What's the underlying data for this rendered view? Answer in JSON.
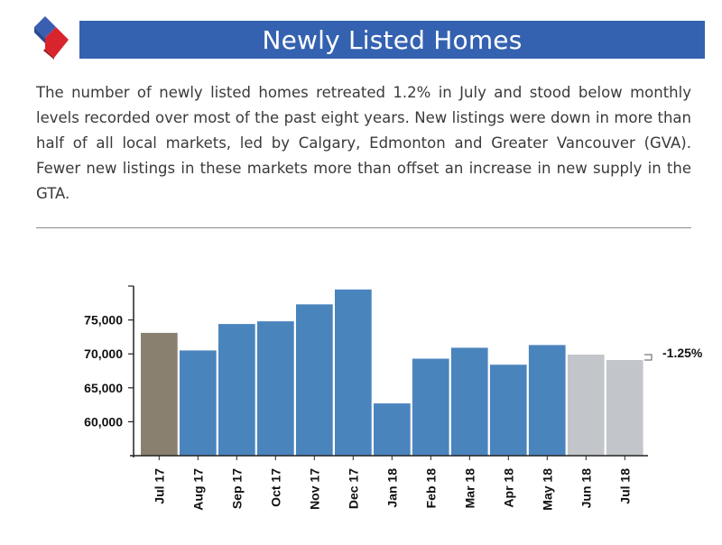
{
  "header": {
    "title": "Newly Listed Homes",
    "bar_color": "#3462b0",
    "logo_icon": "diamond-logo-icon"
  },
  "body": {
    "paragraph": "The number of newly listed homes retreated 1.2% in July and stood below monthly levels recorded over most of the past eight years. New listings were down in more than half of all local markets, led by Calgary, Edmonton and Greater Vancouver (GVA). Fewer new listings in these markets more than offset an increase in new supply in the GTA."
  },
  "chart_data": {
    "type": "bar",
    "title": "",
    "xlabel": "",
    "ylabel": "",
    "categories": [
      "Jul 17",
      "Aug 17",
      "Sep 17",
      "Oct 17",
      "Nov 17",
      "Dec 17",
      "Jan 18",
      "Feb 18",
      "Mar 18",
      "Apr 18",
      "May 18",
      "Jun 18",
      "Jul 18"
    ],
    "values": [
      73100,
      70500,
      74400,
      74800,
      77300,
      79500,
      62700,
      69300,
      70900,
      68400,
      71300,
      69900,
      69100
    ],
    "colors": [
      "#8a8070",
      "#4a84bd",
      "#4a84bd",
      "#4a84bd",
      "#4a84bd",
      "#4a84bd",
      "#4a84bd",
      "#4a84bd",
      "#4a84bd",
      "#4a84bd",
      "#4a84bd",
      "#c2c6ca",
      "#c2c6ca"
    ],
    "yticks": [
      60000,
      65000,
      70000,
      75000
    ],
    "ytick_labels": [
      "60,000",
      "65,000",
      "70,000",
      "75,000"
    ],
    "ylim": [
      55000,
      80000
    ],
    "grid": false,
    "annotation": "-1.25%"
  }
}
